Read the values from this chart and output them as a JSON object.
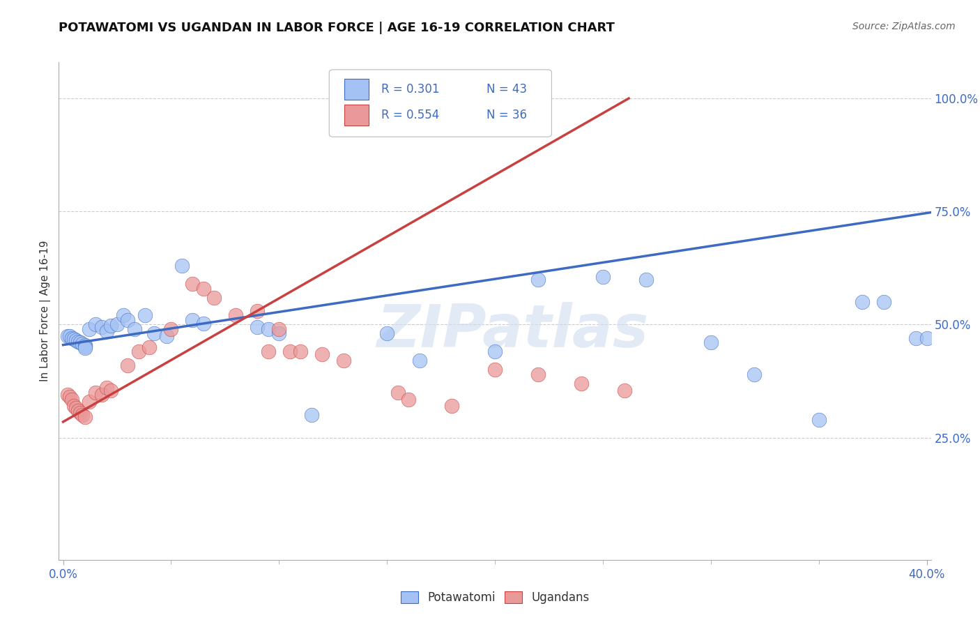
{
  "title": "POTAWATOMI VS UGANDAN IN LABOR FORCE | AGE 16-19 CORRELATION CHART",
  "source": "Source: ZipAtlas.com",
  "ylabel": "In Labor Force | Age 16-19",
  "xlim": [
    -0.002,
    0.402
  ],
  "ylim": [
    -0.02,
    1.08
  ],
  "xticks_labeled": [
    0.0,
    0.4
  ],
  "xtick_labels": [
    "0.0%",
    "40.0%"
  ],
  "xticks_minor": [
    0.05,
    0.1,
    0.15,
    0.2,
    0.25,
    0.3,
    0.35
  ],
  "yticks": [
    0.25,
    0.5,
    0.75,
    1.0
  ],
  "ytick_labels": [
    "25.0%",
    "50.0%",
    "75.0%",
    "100.0%"
  ],
  "grid_color": "#cccccc",
  "background_color": "#ffffff",
  "blue_color": "#a4c2f4",
  "pink_color": "#ea9999",
  "blue_edge_color": "#3d6bc4",
  "pink_edge_color": "#c94040",
  "blue_line_color": "#3d6bc4",
  "pink_line_color": "#c94040",
  "text_color": "#3d6bc4",
  "watermark_text": "ZIPatlas",
  "legend_R_blue": "R = 0.301",
  "legend_N_blue": "N = 43",
  "legend_R_pink": "R = 0.554",
  "legend_N_pink": "N = 36",
  "legend_label_blue": "Potawatomi",
  "legend_label_pink": "Ugandans",
  "blue_x": [
    0.002,
    0.003,
    0.004,
    0.005,
    0.006,
    0.007,
    0.008,
    0.009,
    0.01,
    0.01,
    0.01,
    0.012,
    0.015,
    0.018,
    0.02,
    0.022,
    0.025,
    0.028,
    0.03,
    0.033,
    0.038,
    0.042,
    0.048,
    0.055,
    0.06,
    0.065,
    0.09,
    0.095,
    0.1,
    0.115,
    0.15,
    0.165,
    0.2,
    0.22,
    0.25,
    0.27,
    0.3,
    0.32,
    0.35,
    0.37,
    0.38,
    0.395,
    0.4
  ],
  "blue_y": [
    0.475,
    0.475,
    0.47,
    0.468,
    0.465,
    0.462,
    0.46,
    0.458,
    0.455,
    0.452,
    0.449,
    0.49,
    0.5,
    0.495,
    0.485,
    0.498,
    0.5,
    0.52,
    0.51,
    0.49,
    0.52,
    0.48,
    0.475,
    0.63,
    0.51,
    0.502,
    0.495,
    0.49,
    0.48,
    0.3,
    0.48,
    0.42,
    0.44,
    0.6,
    0.605,
    0.6,
    0.46,
    0.39,
    0.29,
    0.55,
    0.55,
    0.47,
    0.47
  ],
  "pink_x": [
    0.002,
    0.003,
    0.004,
    0.005,
    0.006,
    0.007,
    0.008,
    0.009,
    0.01,
    0.012,
    0.015,
    0.018,
    0.02,
    0.022,
    0.03,
    0.035,
    0.04,
    0.05,
    0.06,
    0.065,
    0.07,
    0.08,
    0.09,
    0.095,
    0.1,
    0.105,
    0.11,
    0.12,
    0.13,
    0.155,
    0.16,
    0.18,
    0.2,
    0.22,
    0.24,
    0.26
  ],
  "pink_y": [
    0.345,
    0.34,
    0.335,
    0.32,
    0.315,
    0.31,
    0.305,
    0.3,
    0.295,
    0.33,
    0.35,
    0.345,
    0.36,
    0.355,
    0.41,
    0.44,
    0.45,
    0.49,
    0.59,
    0.58,
    0.56,
    0.52,
    0.53,
    0.44,
    0.49,
    0.44,
    0.44,
    0.435,
    0.42,
    0.35,
    0.335,
    0.32,
    0.4,
    0.39,
    0.37,
    0.355
  ],
  "blue_line_x0": 0.0,
  "blue_line_x1": 0.402,
  "blue_line_y0": 0.455,
  "blue_line_y1": 0.748,
  "pink_line_x0": 0.0,
  "pink_line_x1": 0.262,
  "pink_line_y0": 0.285,
  "pink_line_y1": 1.0
}
